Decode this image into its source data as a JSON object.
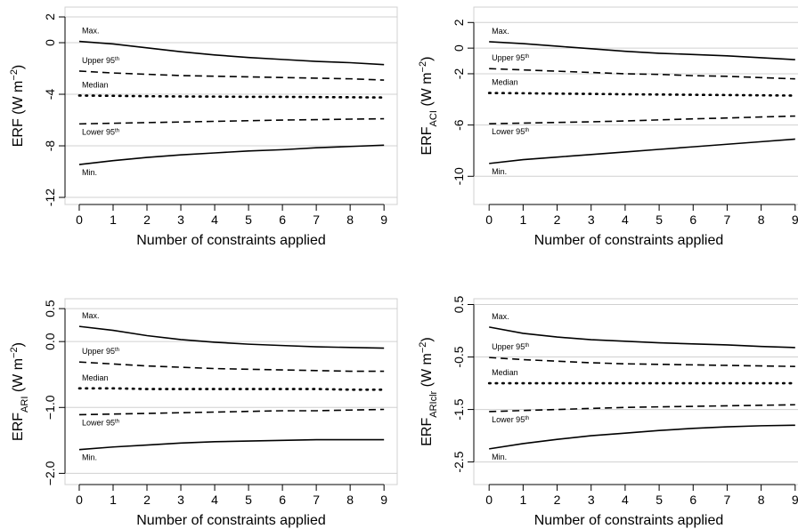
{
  "chart_data": [
    {
      "type": "line",
      "xlabel": "Number of constraints applied",
      "ylabel": [
        {
          "text": "ERF"
        },
        {
          "text": "  (W m"
        },
        {
          "text": "−2",
          "shift": "super"
        },
        {
          "text": ")"
        }
      ],
      "x": [
        0,
        1,
        2,
        3,
        4,
        5,
        6,
        7,
        8,
        9
      ],
      "xlim": [
        -0.42,
        9.39
      ],
      "xticks": [
        0,
        1,
        2,
        3,
        4,
        5,
        6,
        7,
        8,
        9
      ],
      "ylim": [
        -12.55,
        2.76
      ],
      "yticks": [
        2,
        0,
        -4,
        -8,
        -12
      ],
      "grid": true,
      "series": [
        {
          "name": "Max.",
          "color": "#000000",
          "dash": "solid",
          "label_side": "above",
          "values": [
            0.1,
            -0.1,
            -0.4,
            -0.7,
            -0.95,
            -1.15,
            -1.3,
            -1.45,
            -1.55,
            -1.7
          ]
        },
        {
          "name": "Upper 95",
          "sup": "th",
          "color": "#000000",
          "dash": "dashed",
          "label_side": "above",
          "values": [
            -2.2,
            -2.35,
            -2.45,
            -2.55,
            -2.6,
            -2.65,
            -2.7,
            -2.75,
            -2.8,
            -2.9
          ]
        },
        {
          "name": "Median",
          "color": "#000000",
          "dash": "dotted",
          "label_side": "above",
          "values": [
            -4.1,
            -4.12,
            -4.15,
            -4.17,
            -4.18,
            -4.2,
            -4.2,
            -4.22,
            -4.23,
            -4.25
          ]
        },
        {
          "name": "Lower 95",
          "sup": "th",
          "color": "#000000",
          "dash": "dashed",
          "label_side": "below",
          "values": [
            -6.3,
            -6.25,
            -6.2,
            -6.15,
            -6.1,
            -6.05,
            -6.0,
            -5.97,
            -5.93,
            -5.9
          ]
        },
        {
          "name": "Min.",
          "color": "#000000",
          "dash": "solid",
          "label_side": "below",
          "values": [
            -9.45,
            -9.15,
            -8.9,
            -8.7,
            -8.55,
            -8.4,
            -8.3,
            -8.15,
            -8.05,
            -7.95
          ]
        }
      ]
    },
    {
      "type": "line",
      "xlabel": "Number of constraints applied",
      "ylabel": [
        {
          "text": "ERF"
        },
        {
          "text": "ACI",
          "shift": "sub"
        },
        {
          "text": "  (W m"
        },
        {
          "text": "−2",
          "shift": "super"
        },
        {
          "text": ")"
        }
      ],
      "x": [
        0,
        1,
        2,
        3,
        4,
        5,
        6,
        7,
        8,
        9
      ],
      "xlim": [
        -0.45,
        9.45
      ],
      "xticks": [
        0,
        1,
        2,
        3,
        4,
        5,
        6,
        7,
        8,
        9
      ],
      "ylim": [
        -12.2,
        3.2
      ],
      "yticks": [
        2,
        0,
        -2,
        -6,
        -10
      ],
      "grid": true,
      "series": [
        {
          "name": "Max.",
          "color": "#000000",
          "dash": "solid",
          "label_side": "above",
          "values": [
            0.5,
            0.35,
            0.15,
            -0.05,
            -0.25,
            -0.4,
            -0.5,
            -0.6,
            -0.75,
            -0.9
          ]
        },
        {
          "name": "Upper 95",
          "sup": "th",
          "color": "#000000",
          "dash": "dashed",
          "label_side": "above",
          "values": [
            -1.6,
            -1.7,
            -1.8,
            -1.9,
            -2.0,
            -2.05,
            -2.15,
            -2.2,
            -2.3,
            -2.4
          ]
        },
        {
          "name": "Median",
          "color": "#000000",
          "dash": "dotted",
          "label_side": "above",
          "values": [
            -3.5,
            -3.52,
            -3.55,
            -3.57,
            -3.6,
            -3.62,
            -3.64,
            -3.66,
            -3.68,
            -3.7
          ]
        },
        {
          "name": "Lower 95",
          "sup": "th",
          "color": "#000000",
          "dash": "dashed",
          "label_side": "below",
          "values": [
            -5.9,
            -5.85,
            -5.8,
            -5.75,
            -5.68,
            -5.6,
            -5.52,
            -5.45,
            -5.37,
            -5.3
          ]
        },
        {
          "name": "Min.",
          "color": "#000000",
          "dash": "solid",
          "label_side": "below",
          "values": [
            -9.0,
            -8.7,
            -8.5,
            -8.3,
            -8.1,
            -7.9,
            -7.7,
            -7.5,
            -7.3,
            -7.1
          ]
        }
      ]
    },
    {
      "type": "line",
      "xlabel": "Number of constraints applied",
      "ylabel": [
        {
          "text": "ERF"
        },
        {
          "text": "ARI",
          "shift": "sub"
        },
        {
          "text": "  (W m"
        },
        {
          "text": "−2",
          "shift": "super"
        },
        {
          "text": ")"
        }
      ],
      "x": [
        0,
        1,
        2,
        3,
        4,
        5,
        6,
        7,
        8,
        9
      ],
      "xlim": [
        -0.42,
        9.39
      ],
      "xticks": [
        0,
        1,
        2,
        3,
        4,
        5,
        6,
        7,
        8,
        9
      ],
      "ylim": [
        -2.17,
        0.65
      ],
      "yticks": [
        0.5,
        {
          "value": 0,
          "label": "0.0"
        },
        {
          "value": -1,
          "label": "−1.0"
        },
        {
          "value": -2,
          "label": "−2.0"
        }
      ],
      "grid": true,
      "series": [
        {
          "name": "Max.",
          "color": "#000000",
          "dash": "solid",
          "label_side": "above",
          "values": [
            0.23,
            0.17,
            0.09,
            0.03,
            -0.01,
            -0.04,
            -0.06,
            -0.08,
            -0.09,
            -0.1
          ]
        },
        {
          "name": "Upper 95",
          "sup": "th",
          "color": "#000000",
          "dash": "dashed",
          "label_side": "above",
          "values": [
            -0.31,
            -0.34,
            -0.37,
            -0.39,
            -0.41,
            -0.42,
            -0.43,
            -0.44,
            -0.45,
            -0.45
          ]
        },
        {
          "name": "Median",
          "color": "#000000",
          "dash": "dotted",
          "label_side": "above",
          "values": [
            -0.71,
            -0.71,
            -0.72,
            -0.72,
            -0.72,
            -0.72,
            -0.72,
            -0.72,
            -0.73,
            -0.73
          ]
        },
        {
          "name": "Lower 95",
          "sup": "th",
          "color": "#000000",
          "dash": "dashed",
          "label_side": "below",
          "values": [
            -1.11,
            -1.1,
            -1.09,
            -1.08,
            -1.07,
            -1.06,
            -1.05,
            -1.05,
            -1.04,
            -1.03
          ]
        },
        {
          "name": "Min.",
          "color": "#000000",
          "dash": "solid",
          "label_side": "below",
          "values": [
            -1.64,
            -1.6,
            -1.57,
            -1.54,
            -1.52,
            -1.51,
            -1.5,
            -1.49,
            -1.49,
            -1.49
          ]
        }
      ]
    },
    {
      "type": "line",
      "xlabel": "Number of constraints applied",
      "ylabel": [
        {
          "text": "ERF"
        },
        {
          "text": "ARIclr",
          "shift": "sub"
        },
        {
          "text": "  (W m"
        },
        {
          "text": "−2",
          "shift": "super"
        },
        {
          "text": ")"
        }
      ],
      "x": [
        0,
        1,
        2,
        3,
        4,
        5,
        6,
        7,
        8,
        9
      ],
      "xlim": [
        -0.45,
        9.45
      ],
      "xticks": [
        0,
        1,
        2,
        3,
        4,
        5,
        6,
        7,
        8,
        9
      ],
      "ylim": [
        -2.93,
        0.61
      ],
      "yticks": [
        0.5,
        -0.5,
        -1.5,
        -2.5
      ],
      "grid": true,
      "series": [
        {
          "name": "Max.",
          "color": "#000000",
          "dash": "solid",
          "label_side": "above",
          "values": [
            0.07,
            -0.05,
            -0.12,
            -0.17,
            -0.2,
            -0.23,
            -0.25,
            -0.27,
            -0.3,
            -0.32
          ]
        },
        {
          "name": "Upper 95",
          "sup": "th",
          "color": "#000000",
          "dash": "dashed",
          "label_side": "above",
          "values": [
            -0.51,
            -0.55,
            -0.58,
            -0.61,
            -0.63,
            -0.64,
            -0.65,
            -0.66,
            -0.67,
            -0.68
          ]
        },
        {
          "name": "Median",
          "color": "#000000",
          "dash": "dotted",
          "label_side": "above",
          "values": [
            -1.0,
            -1.0,
            -1.0,
            -1.0,
            -1.0,
            -1.0,
            -1.0,
            -1.0,
            -1.0,
            -1.0
          ]
        },
        {
          "name": "Lower 95",
          "sup": "th",
          "color": "#000000",
          "dash": "dashed",
          "label_side": "below",
          "values": [
            -1.54,
            -1.52,
            -1.5,
            -1.48,
            -1.46,
            -1.45,
            -1.44,
            -1.43,
            -1.42,
            -1.41
          ]
        },
        {
          "name": "Min.",
          "color": "#000000",
          "dash": "solid",
          "label_side": "below",
          "values": [
            -2.25,
            -2.15,
            -2.07,
            -2.0,
            -1.95,
            -1.9,
            -1.86,
            -1.83,
            -1.81,
            -1.8
          ]
        }
      ]
    }
  ]
}
